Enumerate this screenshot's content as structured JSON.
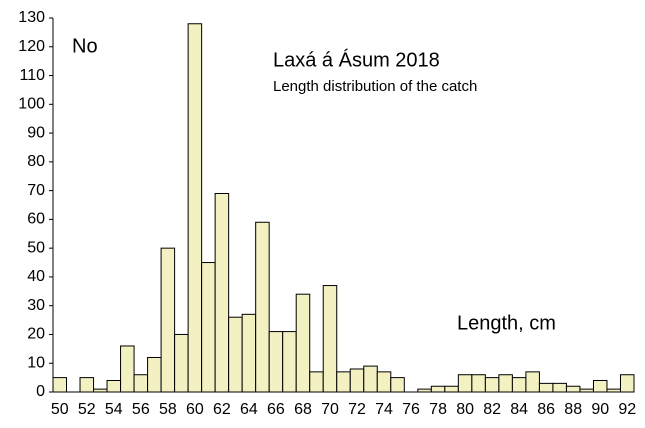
{
  "chart_data": {
    "type": "bar",
    "title": "Laxá á Ásum 2018",
    "subtitle": "Length distribution of the catch",
    "y_label": "No",
    "x_label": "Length, cm",
    "categories": [
      "50",
      null,
      "52",
      null,
      "54",
      null,
      "56",
      null,
      "58",
      null,
      "60",
      null,
      "62",
      null,
      "64",
      null,
      "66",
      null,
      "68",
      null,
      "70",
      null,
      "72",
      null,
      "74",
      null,
      "76",
      null,
      "78",
      null,
      "80",
      null,
      "82",
      null,
      "84",
      null,
      "86",
      null,
      "88",
      null,
      "90",
      null,
      "92"
    ],
    "values": [
      5,
      0,
      5,
      1,
      4,
      16,
      6,
      12,
      50,
      20,
      128,
      45,
      69,
      26,
      27,
      59,
      21,
      21,
      34,
      7,
      37,
      7,
      8,
      9,
      7,
      5,
      0,
      1,
      2,
      2,
      6,
      6,
      5,
      6,
      5,
      7,
      3,
      3,
      2,
      1,
      4,
      1,
      6
    ],
    "color": "#f3f0c2",
    "ylim": [
      0,
      130
    ],
    "yticks": [
      0,
      10,
      20,
      30,
      40,
      50,
      60,
      70,
      80,
      90,
      100,
      110,
      120,
      130
    ]
  }
}
